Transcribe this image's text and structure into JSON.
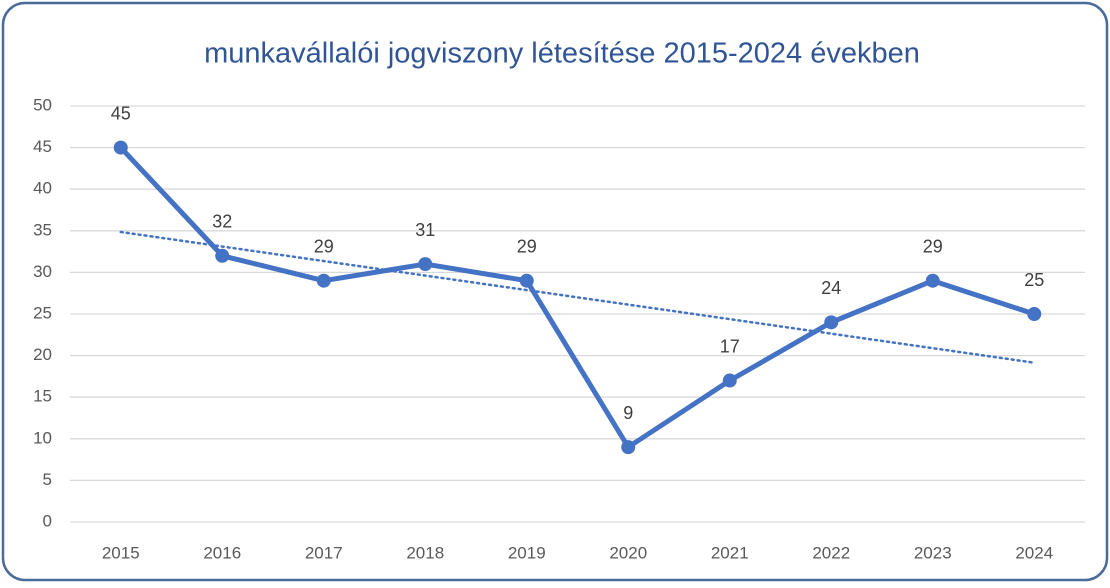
{
  "chart_data": {
    "type": "line",
    "title": "munkavállalói jogviszony létesítése 2015-2024 években",
    "categories": [
      "2015",
      "2016",
      "2017",
      "2018",
      "2019",
      "2020",
      "2021",
      "2022",
      "2023",
      "2024"
    ],
    "series": [
      {
        "color": "#4472c4",
        "values": [
          45,
          32,
          29,
          31,
          29,
          9,
          17,
          24,
          29,
          25
        ]
      }
    ],
    "ylim": [
      0,
      50
    ],
    "yticks": [
      0,
      5,
      10,
      15,
      20,
      25,
      30,
      35,
      40,
      45,
      50
    ],
    "grid": true,
    "data_labels": true,
    "trendline": "linear"
  }
}
